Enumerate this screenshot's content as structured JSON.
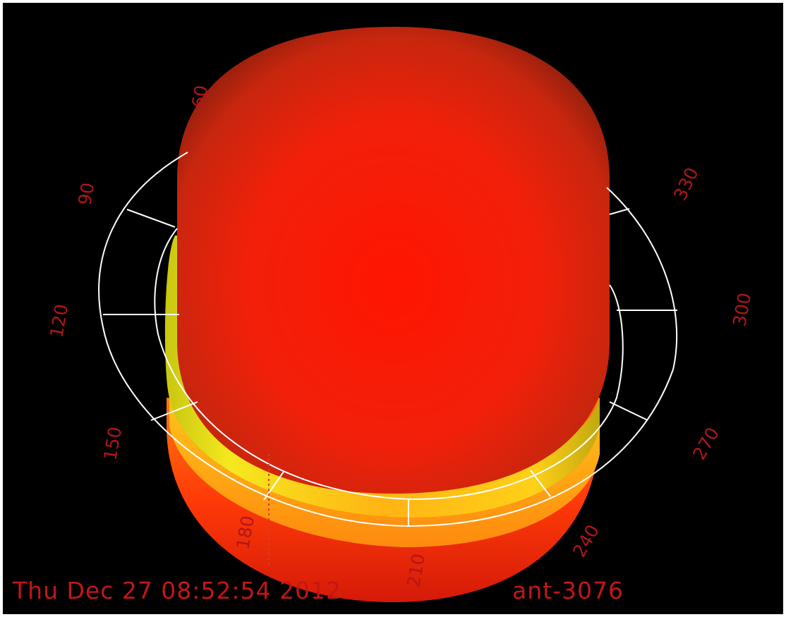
{
  "viewer": {
    "timestamp": "Thu Dec 27 08:52:54 2012",
    "frame_id": "ant-3076",
    "ring_angles": [
      "60",
      "90",
      "120",
      "150",
      "180",
      "210",
      "240",
      "270",
      "300",
      "330"
    ],
    "colors": {
      "background": "#000000",
      "body_red": "#ff1a00",
      "ring_yellow": "#f2e21c",
      "grid_white": "#ffffff",
      "label_red": "#b0161a"
    }
  }
}
